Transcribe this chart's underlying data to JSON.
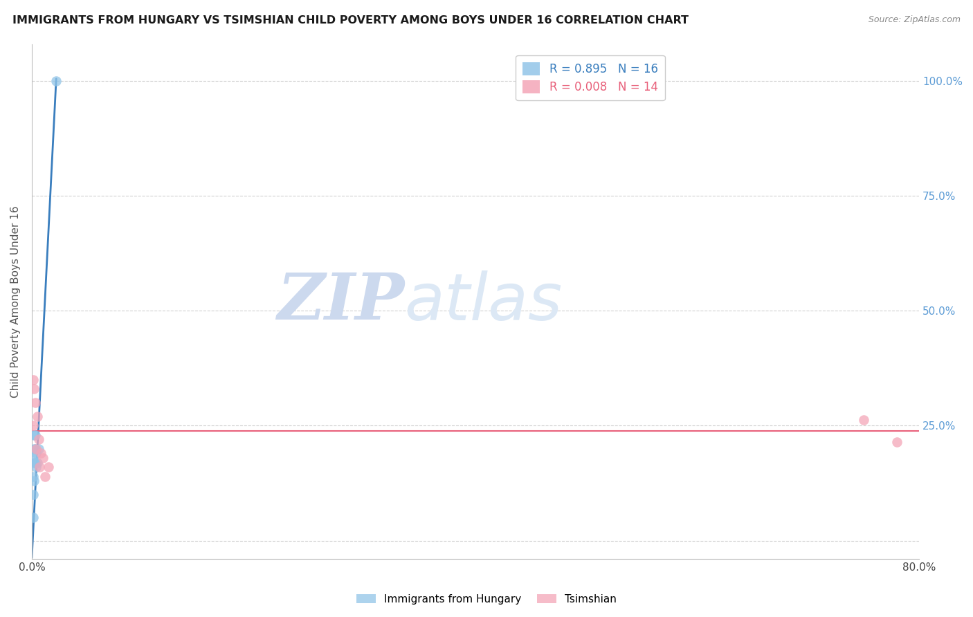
{
  "title": "IMMIGRANTS FROM HUNGARY VS TSIMSHIAN CHILD POVERTY AMONG BOYS UNDER 16 CORRELATION CHART",
  "source": "Source: ZipAtlas.com",
  "ylabel": "Child Poverty Among Boys Under 16",
  "xlim": [
    0.0,
    0.8
  ],
  "ylim": [
    -0.04,
    1.08
  ],
  "yticks": [
    0.0,
    0.25,
    0.5,
    0.75,
    1.0
  ],
  "ytick_labels": [
    "",
    "25.0%",
    "50.0%",
    "75.0%",
    "100.0%"
  ],
  "xticks": [
    0.0,
    0.2,
    0.4,
    0.6,
    0.8
  ],
  "xtick_labels": [
    "0.0%",
    "",
    "",
    "",
    "80.0%"
  ],
  "blue_color": "#92c5e8",
  "pink_color": "#f4a6b8",
  "blue_line_color": "#3a7ebe",
  "pink_line_color": "#e8607a",
  "right_axis_color": "#5b9bd5",
  "legend_R_blue": "R = 0.895",
  "legend_N_blue": "N = 16",
  "legend_R_pink": "R = 0.008",
  "legend_N_pink": "N = 14",
  "watermark_zip": "ZIP",
  "watermark_atlas": "atlas",
  "hungary_x": [
    0.001,
    0.001,
    0.001,
    0.001,
    0.002,
    0.002,
    0.002,
    0.002,
    0.003,
    0.003,
    0.003,
    0.004,
    0.004,
    0.005,
    0.006,
    0.022
  ],
  "hungary_y": [
    0.05,
    0.1,
    0.14,
    0.18,
    0.13,
    0.17,
    0.2,
    0.23,
    0.17,
    0.2,
    0.23,
    0.16,
    0.19,
    0.17,
    0.2,
    1.0
  ],
  "tsimshian_x": [
    0.001,
    0.001,
    0.002,
    0.003,
    0.004,
    0.005,
    0.006,
    0.007,
    0.008,
    0.01,
    0.012,
    0.015,
    0.75,
    0.78
  ],
  "tsimshian_y": [
    0.25,
    0.35,
    0.33,
    0.3,
    0.2,
    0.27,
    0.22,
    0.16,
    0.19,
    0.18,
    0.14,
    0.16,
    0.262,
    0.215
  ],
  "pink_line_y": 0.238,
  "blue_line_x0": 0.0,
  "blue_line_y0": -0.038,
  "blue_line_x1": 0.022,
  "blue_line_y1": 1.005,
  "blue_scatter_size": 110,
  "pink_scatter_size": 110
}
